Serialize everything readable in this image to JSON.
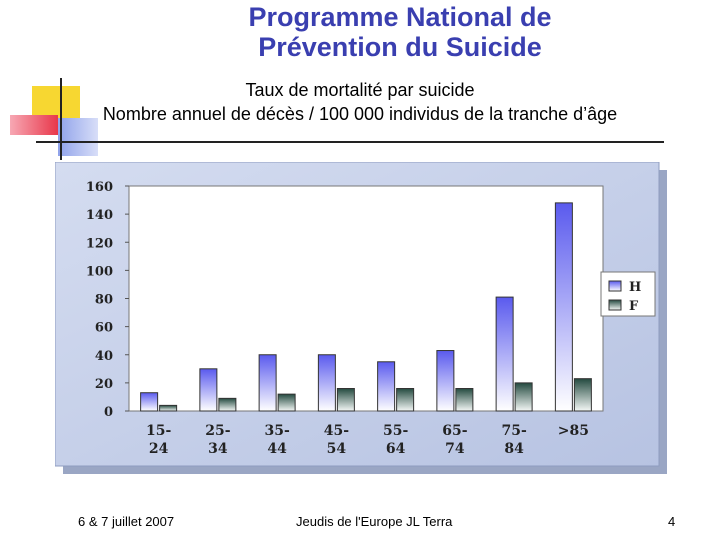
{
  "slide": {
    "title_line1": "Programme National de",
    "title_line2": "Prévention du Suicide",
    "subtitle_line1": "Taux de mortalité par suicide",
    "subtitle_line2": "Nombre annuel de décès / 100 000 individus de la tranche d’âge",
    "footer_date": "6 & 7 juillet 2007",
    "footer_center": "Jeudis de l'Europe JL Terra",
    "footer_page": "4"
  },
  "chart_data": {
    "type": "bar",
    "categories": [
      [
        "15-",
        "24"
      ],
      [
        "25-",
        "34"
      ],
      [
        "35-",
        "44"
      ],
      [
        "45-",
        "54"
      ],
      [
        "55-",
        "64"
      ],
      [
        "65-",
        "74"
      ],
      [
        "75-",
        "84"
      ],
      [
        ">85",
        ""
      ]
    ],
    "series": [
      {
        "name": "H",
        "values": [
          13,
          30,
          40,
          40,
          35,
          43,
          81,
          148
        ],
        "color": "#6b6bf0"
      },
      {
        "name": "F",
        "values": [
          4,
          9,
          12,
          16,
          16,
          16,
          20,
          23
        ],
        "color": "#2f5d50"
      }
    ],
    "ylim": [
      0,
      160
    ],
    "yticks": [
      0,
      20,
      40,
      60,
      80,
      100,
      120,
      140,
      160
    ],
    "legend_position": "right",
    "grid": false,
    "colors": {
      "panel": "#c9d2ea",
      "plot_bg": "#ffffff",
      "accent_yellow": "#f7d731",
      "accent_red": "#e8374a",
      "accent_blue": "#3a3fb0"
    }
  }
}
